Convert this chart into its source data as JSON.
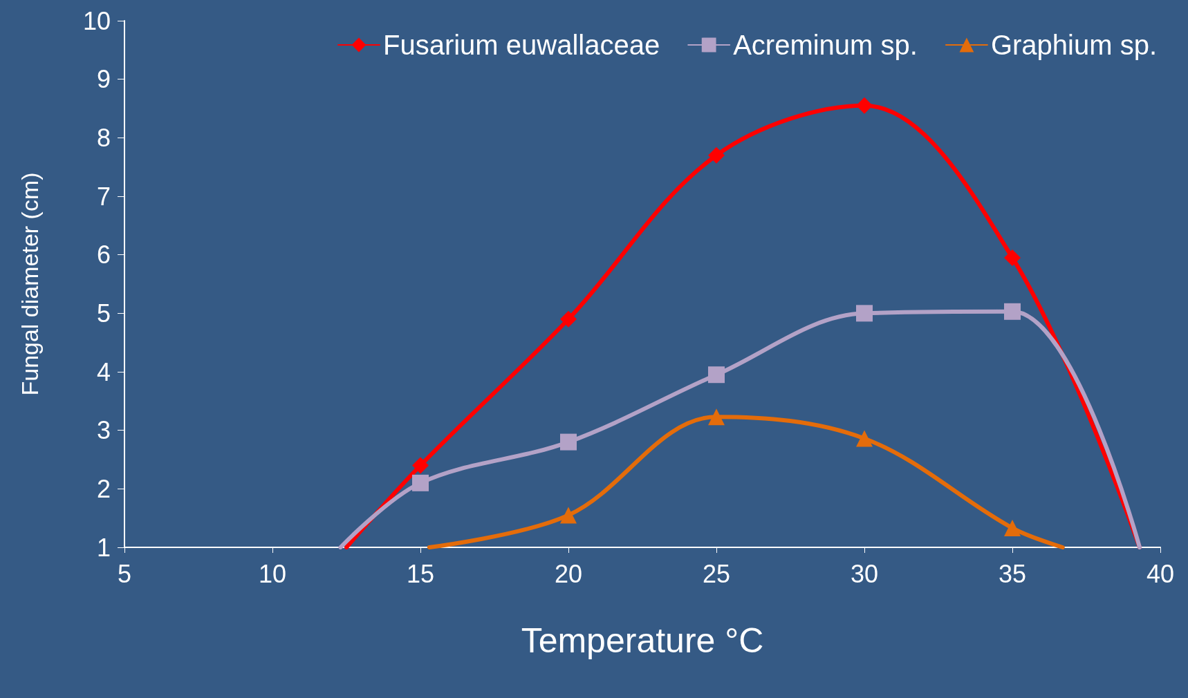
{
  "chart_data": {
    "type": "line",
    "xlabel": "Temperature °C",
    "ylabel": "Fungal diameter (cm)",
    "xlim": [
      5,
      40
    ],
    "xticks": [
      5,
      10,
      15,
      20,
      25,
      30,
      35,
      40
    ],
    "ylim": [
      1,
      10
    ],
    "yticks": [
      1,
      2,
      3,
      4,
      5,
      6,
      7,
      8,
      9,
      10
    ],
    "grid": false,
    "legend": "top right",
    "line_style": "solid",
    "series": [
      {
        "name": "Fusarium euwallaceae",
        "color": "#ff0000",
        "marker": "diamond",
        "x": [
          12.5,
          15,
          20,
          25,
          30,
          35,
          39.3
        ],
        "values": [
          1,
          2.4,
          4.9,
          7.7,
          8.55,
          5.95,
          1
        ]
      },
      {
        "name": "Acreminum sp.",
        "color": "#b3a2c7",
        "marker": "square",
        "x": [
          12.3,
          15,
          20,
          25,
          30,
          35,
          39.3
        ],
        "values": [
          1,
          2.1,
          2.8,
          3.95,
          5.0,
          5.03,
          1
        ]
      },
      {
        "name": "Graphium sp.",
        "color": "#e46c0a",
        "marker": "triangle",
        "x": [
          15.3,
          20,
          25,
          30,
          35,
          36.7
        ],
        "values": [
          1,
          1.55,
          3.23,
          2.86,
          1.33,
          1
        ]
      }
    ]
  }
}
